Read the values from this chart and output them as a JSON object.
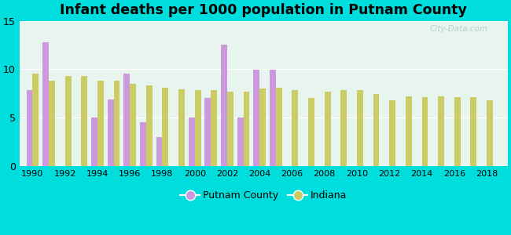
{
  "title": "Infant deaths per 1000 population in Putnam County",
  "years": [
    1990,
    1991,
    1992,
    1993,
    1994,
    1995,
    1996,
    1997,
    1998,
    1999,
    2000,
    2001,
    2002,
    2003,
    2004,
    2005,
    2006,
    2007,
    2008,
    2009,
    2010,
    2011,
    2012,
    2013,
    2014,
    2015,
    2016,
    2017,
    2018
  ],
  "putnam": [
    7.8,
    12.8,
    0,
    0,
    5.0,
    6.9,
    9.5,
    4.5,
    3.0,
    0,
    5.0,
    7.0,
    12.5,
    5.0,
    9.9,
    9.9,
    0,
    0,
    0,
    0,
    0,
    0,
    0,
    0,
    0,
    0,
    0,
    0,
    0
  ],
  "indiana": [
    9.5,
    8.8,
    9.3,
    9.3,
    8.8,
    8.8,
    8.5,
    8.3,
    8.1,
    7.9,
    7.8,
    7.8,
    7.7,
    7.7,
    8.0,
    8.1,
    7.8,
    7.0,
    7.7,
    7.8,
    7.8,
    7.4,
    6.8,
    7.2,
    7.1,
    7.2,
    7.1,
    7.1,
    6.8
  ],
  "putnam_color": "#cc99dd",
  "indiana_color": "#cccc66",
  "fig_bg": "#00dddd",
  "plot_bg_color": "#e8f5ee",
  "ylim": [
    0,
    15
  ],
  "yticks": [
    0,
    5,
    10,
    15
  ],
  "bar_width": 0.38,
  "title_fontsize": 12.5,
  "watermark": "City-Data.com"
}
